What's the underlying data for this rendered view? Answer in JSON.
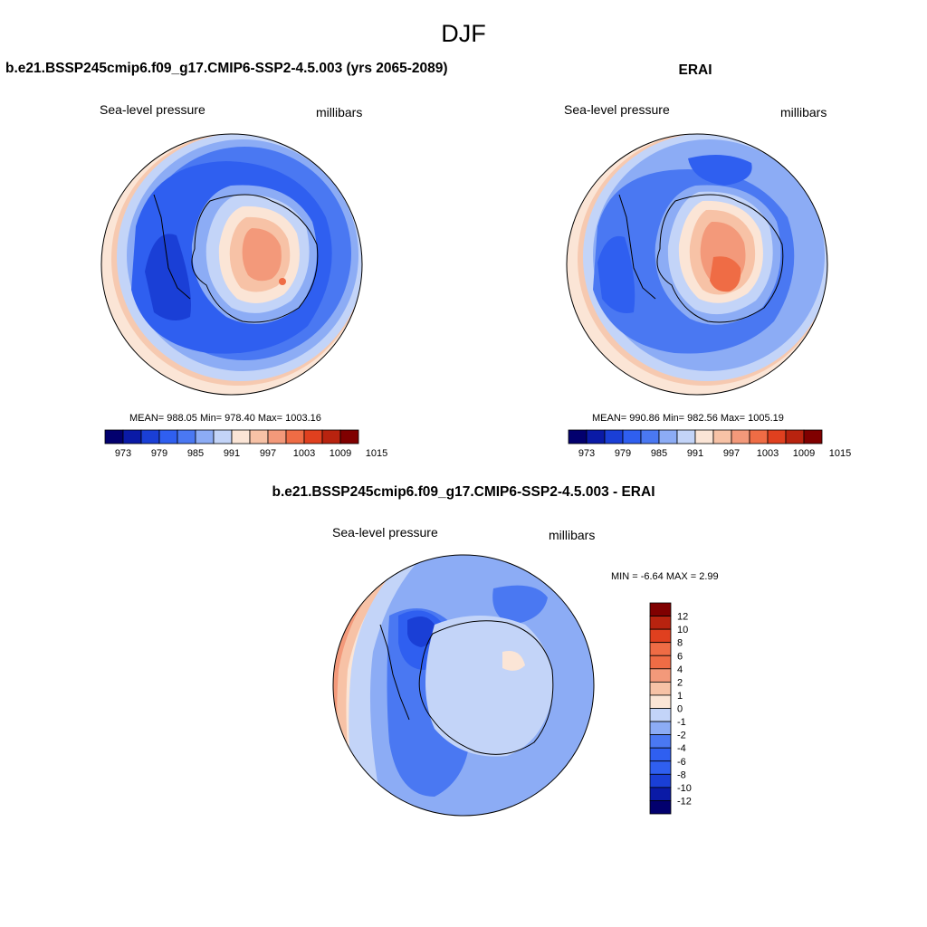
{
  "figure": {
    "title": "DJF"
  },
  "colors": {
    "hbar": [
      "#02006e",
      "#0a1aa6",
      "#1a3fd6",
      "#2f5ff0",
      "#4a78f2",
      "#8cacf5",
      "#c3d4f8",
      "#fbe5d6",
      "#f7c2a6",
      "#f3997a",
      "#ef6c45",
      "#e0401f",
      "#b8230f",
      "#800000"
    ],
    "vbar": [
      "#02006e",
      "#0a1aa6",
      "#1a3fd6",
      "#2f5ff0",
      "#4a78f2",
      "#8cacf5",
      "#c3d4f8",
      "#fbe5d6",
      "#f7c2a6",
      "#f3997a",
      "#ef6c45",
      "#e0401f",
      "#b8230f",
      "#800000"
    ]
  },
  "maps": [
    {
      "title": "b.e21.BSSP245cmip6.f09_g17.CMIP6-SSP2-4.5.003 (yrs 2065-2089)",
      "left_label": "Sea-level pressure",
      "right_label": "millibars",
      "stats": "MEAN= 988.05  Min= 978.40  Max= 1003.16",
      "colorbar_ticks": [
        "973",
        "979",
        "985",
        "991",
        "997",
        "1003",
        "1009",
        "1015"
      ]
    },
    {
      "title": "ERAI",
      "left_label": "Sea-level pressure",
      "right_label": "millibars",
      "stats": "MEAN= 990.86  Min= 982.56  Max= 1005.19",
      "colorbar_ticks": [
        "973",
        "979",
        "985",
        "991",
        "997",
        "1003",
        "1009",
        "1015"
      ]
    },
    {
      "title": "b.e21.BSSP245cmip6.f09_g17.CMIP6-SSP2-4.5.003 - ERAI",
      "left_label": "Sea-level pressure",
      "right_label": "millibars",
      "stats": "MIN =  -6.64 MAX =   2.99",
      "colorbar_ticks": [
        "12",
        "10",
        "8",
        "6",
        "4",
        "2",
        "1",
        "0",
        "-1",
        "-2",
        "-4",
        "-6",
        "-8",
        "-10",
        "-12"
      ]
    }
  ]
}
